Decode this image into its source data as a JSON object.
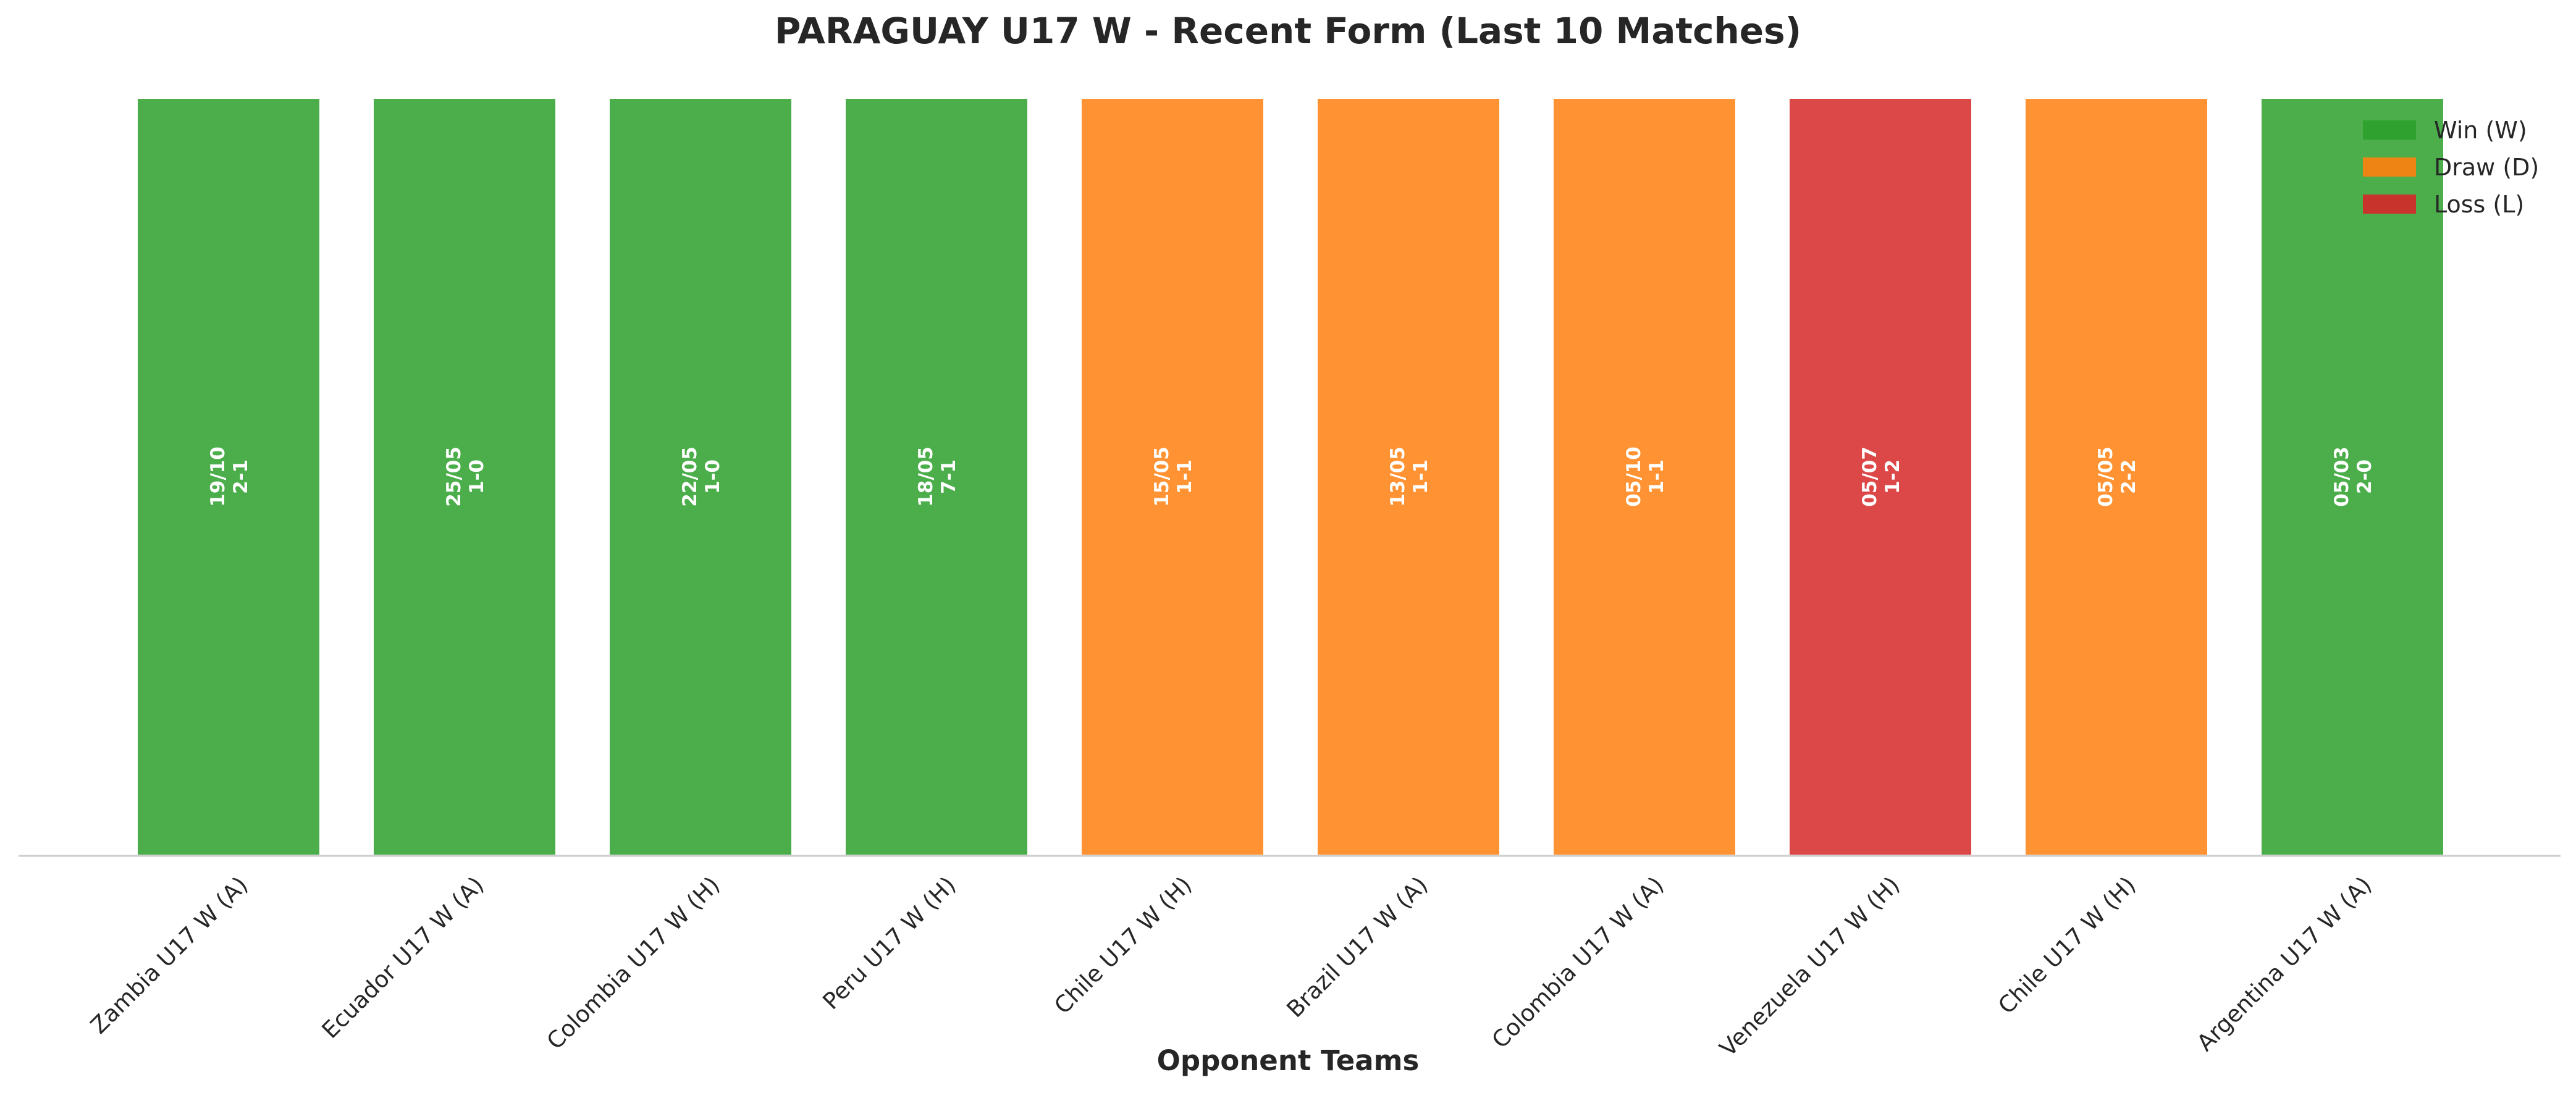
{
  "chart_data": {
    "type": "bar",
    "title": "PARAGUAY U17 W - Recent Form (Last 10 Matches)",
    "xlabel": "Opponent Teams",
    "ylabel": "",
    "grid": false,
    "legend_position": "top-right",
    "categories": [
      "Zambia U17 W (A)",
      "Ecuador U17 W (A)",
      "Colombia U17 W (H)",
      "Peru U17 W (H)",
      "Chile U17 W (H)",
      "Brazil U17 W (A)",
      "Colombia U17 W (A)",
      "Venezuela U17 W (H)",
      "Chile U17 W (H)",
      "Argentina U17 W (A)"
    ],
    "values": [
      1,
      1,
      1,
      1,
      1,
      1,
      1,
      1,
      1,
      1
    ],
    "ylim": [
      0,
      1
    ],
    "results": [
      "W",
      "W",
      "W",
      "W",
      "D",
      "D",
      "D",
      "L",
      "D",
      "W"
    ],
    "dates": [
      "19/10",
      "25/05",
      "22/05",
      "18/05",
      "15/05",
      "13/05",
      "05/10",
      "05/07",
      "05/05",
      "05/03"
    ],
    "scores": [
      "2-1",
      "1-0",
      "1-0",
      "7-1",
      "1-1",
      "1-1",
      "1-1",
      "1-2",
      "2-2",
      "2-0"
    ],
    "legend": [
      {
        "key": "W",
        "label": "Win (W)",
        "color": "#2ca02c"
      },
      {
        "key": "D",
        "label": "Draw (D)",
        "color": "#ff7f0e"
      },
      {
        "key": "L",
        "label": "Loss (L)",
        "color": "#d62728"
      }
    ]
  }
}
